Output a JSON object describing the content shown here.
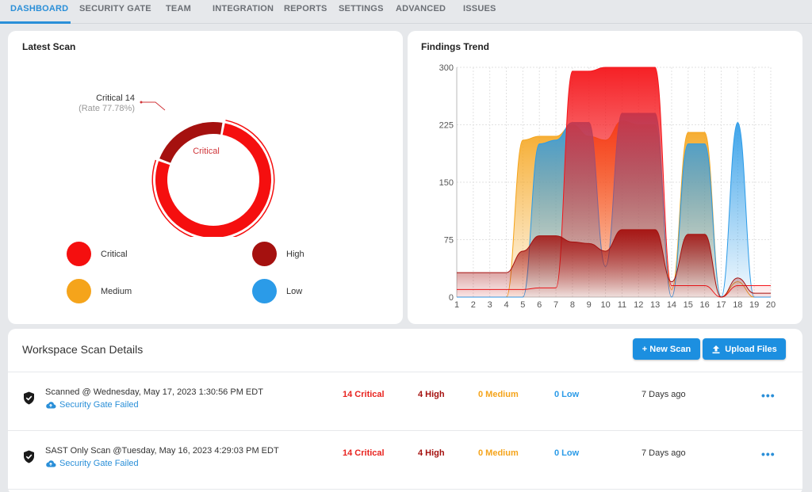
{
  "nav": {
    "tabs": [
      {
        "label": "DASHBOARD",
        "active": true
      },
      {
        "label": "SECURITY GATE"
      },
      {
        "label": "TEAM"
      },
      {
        "label": "INTEGRATION"
      },
      {
        "label": "REPORTS"
      },
      {
        "label": "SETTINGS"
      },
      {
        "label": "ADVANCED"
      },
      {
        "label": "ISSUES"
      }
    ]
  },
  "latest_scan": {
    "title": "Latest Scan",
    "callout_label": "Critical 14",
    "callout_rate": "(Rate 77.78%)",
    "center_label": "Critical",
    "legend": [
      {
        "label": "Critical",
        "color": "#f50f0f"
      },
      {
        "label": "High",
        "color": "#a5110f"
      },
      {
        "label": "Medium",
        "color": "#f5a41b"
      },
      {
        "label": "Low",
        "color": "#2b9be8"
      }
    ],
    "chart_data": {
      "type": "pie",
      "slices": [
        {
          "label": "Critical",
          "value": 14,
          "color": "#f50f0f"
        },
        {
          "label": "High",
          "value": 4,
          "color": "#a5110f"
        },
        {
          "label": "Medium",
          "value": 0,
          "color": "#f5a41b"
        },
        {
          "label": "Low",
          "value": 0,
          "color": "#2b9be8"
        }
      ]
    }
  },
  "findings_trend": {
    "title": "Findings Trend",
    "chart_data": {
      "type": "area",
      "x": [
        1,
        2,
        3,
        4,
        5,
        6,
        7,
        8,
        9,
        10,
        11,
        12,
        13,
        14,
        15,
        16,
        17,
        18,
        19,
        20
      ],
      "ylim": [
        0,
        300
      ],
      "yticks": [
        0,
        75,
        150,
        225,
        300
      ],
      "grid": true,
      "series": [
        {
          "name": "Medium",
          "color": "#f5a41b",
          "values": [
            0,
            0,
            0,
            0,
            205,
            210,
            210,
            225,
            210,
            205,
            230,
            225,
            225,
            10,
            215,
            215,
            0,
            20,
            0,
            0
          ]
        },
        {
          "name": "Low",
          "color": "#2b9be8",
          "values": [
            0,
            0,
            0,
            0,
            0,
            200,
            205,
            228,
            228,
            40,
            240,
            240,
            240,
            0,
            200,
            200,
            0,
            228,
            0,
            0
          ]
        },
        {
          "name": "Critical",
          "color": "#f5151a",
          "values": [
            10,
            10,
            10,
            10,
            10,
            12,
            12,
            295,
            295,
            300,
            300,
            300,
            300,
            15,
            15,
            15,
            0,
            15,
            15,
            15
          ]
        },
        {
          "name": "High",
          "color": "#a5110f",
          "values": [
            32,
            32,
            32,
            32,
            60,
            80,
            80,
            72,
            70,
            60,
            88,
            88,
            88,
            20,
            82,
            82,
            0,
            25,
            5,
            5
          ]
        }
      ]
    }
  },
  "details": {
    "title": "Workspace Scan Details",
    "new_scan_label": "+ New Scan",
    "upload_label": "Upload Files",
    "rows": [
      {
        "name": "Scanned @ Wednesday, May 17, 2023 1:30:56 PM EDT",
        "gate": "Security Gate Failed",
        "critical": "14 Critical",
        "high": "4 High",
        "medium": "0 Medium",
        "low": "0 Low",
        "ago": "7 Days ago",
        "menu": "•••"
      },
      {
        "name": "SAST Only Scan @Tuesday, May 16, 2023 4:29:03 PM EDT",
        "gate": "Security Gate Failed",
        "critical": "14 Critical",
        "high": "4 High",
        "medium": "0 Medium",
        "low": "0 Low",
        "ago": "7 Days ago",
        "menu": "•••"
      }
    ]
  },
  "colors": {
    "accent": "#2a8fd8",
    "critical": "#e8231f",
    "high": "#a5110f",
    "medium": "#f5a41b",
    "low": "#2b9be8"
  }
}
